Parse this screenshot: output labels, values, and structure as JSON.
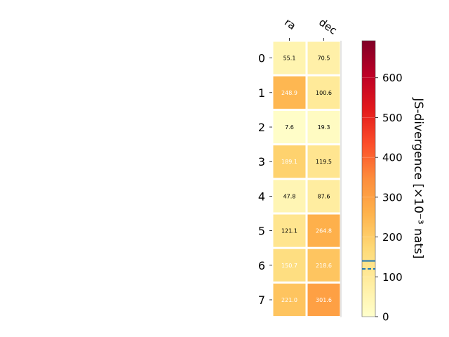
{
  "chart_data": {
    "type": "heatmap",
    "x_categories": [
      "ra",
      "dec"
    ],
    "y_categories": [
      "0",
      "1",
      "2",
      "3",
      "4",
      "5",
      "6",
      "7"
    ],
    "values": [
      [
        55.1,
        70.5
      ],
      [
        248.9,
        100.6
      ],
      [
        7.6,
        19.3
      ],
      [
        189.1,
        119.5
      ],
      [
        47.8,
        87.6
      ],
      [
        121.1,
        264.8
      ],
      [
        150.7,
        218.6
      ],
      [
        221.0,
        301.6
      ]
    ],
    "cell_labels": [
      [
        "55.1",
        "70.5"
      ],
      [
        "248.9",
        "100.6"
      ],
      [
        "7.6",
        "19.3"
      ],
      [
        "189.1",
        "119.5"
      ],
      [
        "47.8",
        "87.6"
      ],
      [
        "121.1",
        "264.8"
      ],
      [
        "150.7",
        "218.6"
      ],
      [
        "221.0",
        "301.6"
      ]
    ],
    "colormap": "YlOrRd",
    "colorbar": {
      "label": "JS-divergence [×10⁻³ nats]",
      "range": [
        0,
        693
      ],
      "ticks": [
        0,
        100,
        200,
        300,
        400,
        500,
        600
      ],
      "tick_labels": [
        "0",
        "100",
        "200",
        "300",
        "400",
        "500",
        "600"
      ],
      "reference_lines": [
        {
          "value": 140,
          "style": "solid",
          "color": "#1f77b4"
        },
        {
          "value": 120,
          "style": "dashed",
          "color": "#1f77b4"
        }
      ]
    },
    "grid": false
  }
}
